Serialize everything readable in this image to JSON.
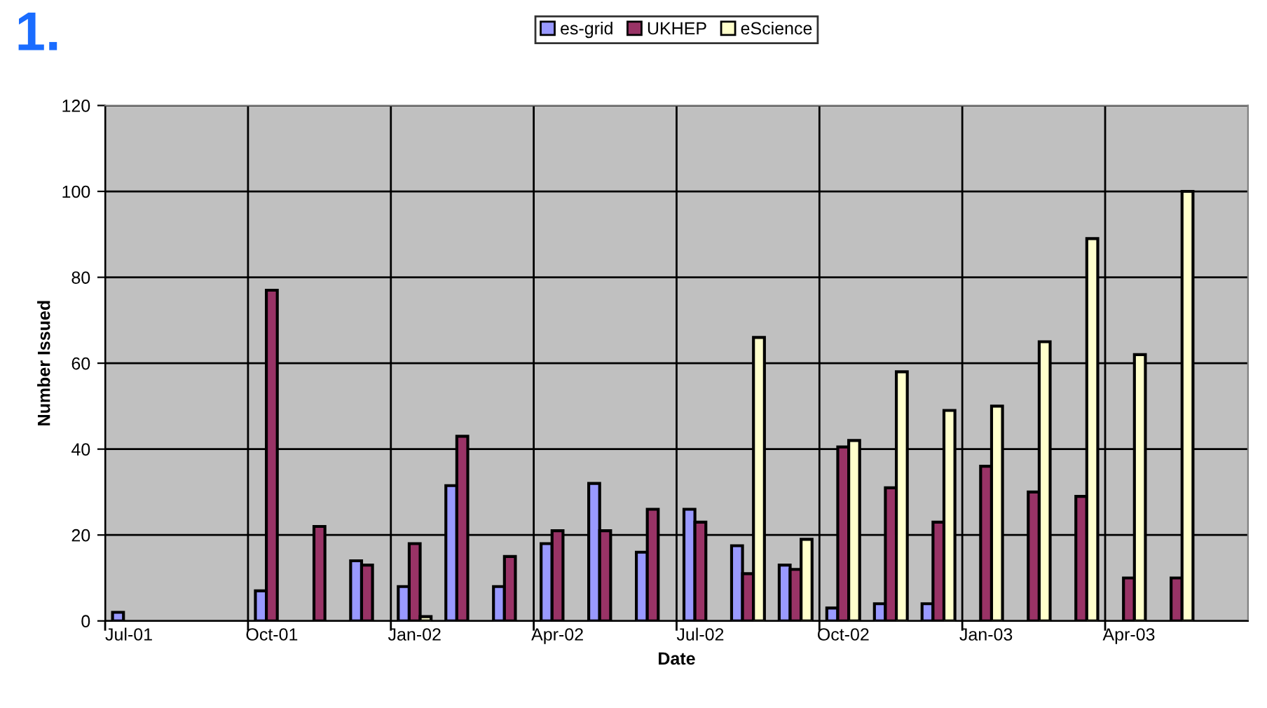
{
  "chart_data": {
    "type": "bar",
    "title": "1.",
    "xlabel": "Date",
    "ylabel": "Number Issued",
    "categories": [
      "Jul-01",
      null,
      null,
      "Oct-01",
      null,
      null,
      "Jan-02",
      null,
      null,
      "Apr-02",
      null,
      null,
      "Jul-02",
      null,
      null,
      "Oct-02",
      null,
      null,
      "Jan-03",
      null,
      null,
      "Apr-03",
      null,
      null
    ],
    "series": [
      {
        "name": "es-grid",
        "color": "#9999ff",
        "values": [
          2,
          null,
          null,
          7,
          null,
          14,
          8,
          31.5,
          8,
          18,
          32,
          16,
          26,
          17.5,
          13,
          3,
          4,
          4,
          null,
          null,
          null,
          null,
          null,
          null
        ]
      },
      {
        "name": "UKHEP",
        "color": "#993366",
        "values": [
          null,
          null,
          null,
          77,
          22,
          13,
          18,
          43,
          15,
          21,
          21,
          26,
          23,
          11,
          12,
          40.5,
          31,
          23,
          36,
          30,
          29,
          10,
          10,
          null
        ]
      },
      {
        "name": "eScience",
        "color": "#ffffcc",
        "values": [
          null,
          null,
          null,
          null,
          null,
          null,
          1,
          null,
          null,
          null,
          null,
          null,
          null,
          66,
          19,
          42,
          58,
          49,
          50,
          65,
          89,
          62,
          100,
          null
        ]
      }
    ],
    "ylim": [
      0,
      120
    ],
    "yticks": [
      0,
      20,
      40,
      60,
      80,
      100,
      120
    ],
    "grid": true,
    "legend": "top"
  }
}
